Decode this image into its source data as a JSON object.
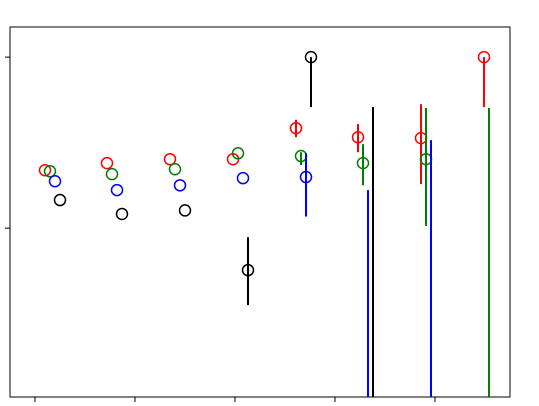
{
  "chart_data": {
    "type": "errorbar",
    "log_y": true,
    "xlim": [
      -0.25,
      4.75
    ],
    "xticks": [
      0,
      1,
      2,
      3,
      4
    ],
    "ylim": [
      0.103,
      15
    ],
    "yticks": [
      1,
      10
    ],
    "series": [
      {
        "color": "#ff0000",
        "x": [
          0.1,
          0.72,
          1.35,
          1.98,
          2.61,
          3.23,
          3.86,
          4.49
        ],
        "values": [
          2.18,
          2.4,
          2.53,
          2.53,
          3.84,
          3.4,
          3.36,
          10
        ],
        "err_low": [
          null,
          null,
          null,
          null,
          3.4,
          2.78,
          1.81,
          5.1
        ],
        "err_high": [
          null,
          null,
          null,
          null,
          4.3,
          4.06,
          5.31,
          10
        ]
      },
      {
        "color": "#008000",
        "x": [
          0.15,
          0.77,
          1.4,
          2.03,
          2.66,
          3.28,
          3.91,
          4.54
        ],
        "values": [
          2.15,
          2.07,
          2.21,
          2.74,
          2.64,
          2.4,
          2.53,
          null
        ],
        "err_low": [
          null,
          null,
          null,
          null,
          2.34,
          1.78,
          1.03,
          0.1
        ],
        "err_high": [
          null,
          null,
          null,
          null,
          2.78,
          3.1,
          5.04,
          5.04
        ]
      },
      {
        "color": "#0000ff",
        "x": [
          0.2,
          0.82,
          1.45,
          2.08,
          2.71,
          3.33,
          3.96
        ],
        "values": [
          1.88,
          1.67,
          1.78,
          1.96,
          1.99,
          null,
          null
        ],
        "err_low": [
          null,
          null,
          null,
          null,
          1.17,
          0.1,
          0.1
        ],
        "err_high": [
          null,
          null,
          null,
          null,
          2.74,
          1.67,
          3.27
        ]
      },
      {
        "color": "#000000",
        "x": [
          0.25,
          0.87,
          1.5,
          2.13,
          2.76,
          3.38
        ],
        "values": [
          1.46,
          1.21,
          1.27,
          0.568,
          10,
          null
        ],
        "err_low": [
          null,
          null,
          null,
          0.355,
          5.1,
          0.1
        ],
        "err_high": [
          null,
          null,
          null,
          0.886,
          10,
          5.1
        ]
      }
    ]
  }
}
